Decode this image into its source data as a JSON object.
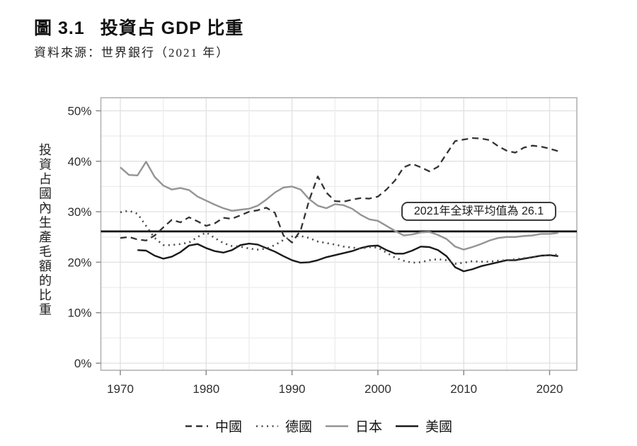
{
  "header": {
    "figure_label": "圖 3.1",
    "title": "投資占 GDP 比重",
    "source": "資料來源：世界銀行（2021 年）"
  },
  "chart_data": {
    "type": "line",
    "title": "投資占 GDP 比重",
    "xlabel": "",
    "ylabel": "投資占國內生產毛額的比重",
    "x_ticks": [
      1970,
      1980,
      1990,
      2000,
      2010,
      2020
    ],
    "y_ticks": [
      "0%",
      "10%",
      "20%",
      "30%",
      "40%",
      "50%"
    ],
    "xlim": [
      1967.5,
      2023.5
    ],
    "ylim": [
      -1.5,
      52.5
    ],
    "grid": "light gray gridlines every 5 years and every 5%",
    "legend_position": "bottom",
    "average_line": {
      "value": 26.1,
      "label": "2021年全球平均值為 26.1"
    },
    "years": [
      1970,
      1971,
      1972,
      1973,
      1974,
      1975,
      1976,
      1977,
      1978,
      1979,
      1980,
      1981,
      1982,
      1983,
      1984,
      1985,
      1986,
      1987,
      1988,
      1989,
      1990,
      1991,
      1992,
      1993,
      1994,
      1995,
      1996,
      1997,
      1998,
      1999,
      2000,
      2001,
      2002,
      2003,
      2004,
      2005,
      2006,
      2007,
      2008,
      2009,
      2010,
      2011,
      2012,
      2013,
      2014,
      2015,
      2016,
      2017,
      2018,
      2019,
      2020,
      2021
    ],
    "series": [
      {
        "name": "中國",
        "style": "dashed",
        "color": "#333333",
        "values": [
          24.8,
          25.0,
          24.5,
          24.3,
          25.3,
          26.9,
          28.4,
          27.9,
          28.9,
          28.1,
          27.2,
          27.7,
          28.8,
          28.6,
          29.3,
          30.0,
          30.3,
          30.8,
          29.8,
          25.3,
          23.9,
          26.3,
          32.3,
          37.0,
          33.8,
          32.1,
          32.0,
          32.4,
          32.7,
          32.6,
          33.0,
          34.4,
          36.2,
          38.8,
          39.5,
          38.8,
          38.0,
          38.9,
          41.5,
          44.0,
          44.3,
          44.6,
          44.5,
          44.2,
          43.0,
          42.1,
          41.7,
          42.7,
          43.1,
          42.9,
          42.5,
          42.0
        ]
      },
      {
        "name": "德國",
        "style": "dotted",
        "color": "#4a4a4a",
        "values": [
          29.9,
          30.2,
          29.6,
          27.2,
          24.8,
          23.4,
          23.4,
          23.6,
          23.9,
          25.0,
          25.9,
          24.8,
          23.8,
          23.2,
          23.1,
          22.7,
          22.5,
          22.7,
          23.4,
          24.4,
          25.1,
          25.2,
          24.8,
          24.1,
          23.8,
          23.5,
          23.1,
          22.9,
          22.7,
          23.0,
          22.9,
          21.9,
          20.9,
          20.3,
          19.9,
          20.0,
          20.4,
          20.6,
          20.4,
          19.7,
          19.9,
          20.2,
          20.1,
          20.1,
          20.3,
          20.4,
          20.6,
          20.8,
          21.0,
          21.3,
          21.4,
          21.5
        ]
      },
      {
        "name": "日本",
        "style": "solid",
        "color": "#949494",
        "values": [
          38.8,
          37.3,
          37.2,
          39.9,
          36.9,
          35.2,
          34.4,
          34.7,
          34.3,
          33.0,
          32.2,
          31.4,
          30.7,
          30.2,
          30.4,
          30.6,
          31.2,
          32.4,
          33.8,
          34.8,
          35.0,
          34.4,
          32.5,
          31.2,
          30.7,
          31.5,
          31.3,
          30.6,
          29.4,
          28.5,
          28.2,
          27.2,
          26.2,
          25.3,
          25.5,
          25.9,
          26.0,
          25.4,
          24.6,
          23.1,
          22.5,
          23.0,
          23.6,
          24.3,
          24.8,
          25.0,
          25.0,
          25.2,
          25.3,
          25.6,
          25.6,
          25.8
        ]
      },
      {
        "name": "美國",
        "style": "solid",
        "color": "#1a1a1a",
        "values": [
          null,
          null,
          22.4,
          22.3,
          21.3,
          20.7,
          21.1,
          22.0,
          23.3,
          23.6,
          22.8,
          22.2,
          21.9,
          22.4,
          23.4,
          23.7,
          23.5,
          22.8,
          22.1,
          21.2,
          20.4,
          19.9,
          20.0,
          20.4,
          21.0,
          21.4,
          21.8,
          22.2,
          22.8,
          23.2,
          23.3,
          22.4,
          21.7,
          21.7,
          22.3,
          23.1,
          23.0,
          22.4,
          21.2,
          19.0,
          18.2,
          18.6,
          19.2,
          19.6,
          20.0,
          20.4,
          20.4,
          20.7,
          21.0,
          21.3,
          21.4,
          21.2
        ]
      }
    ]
  }
}
